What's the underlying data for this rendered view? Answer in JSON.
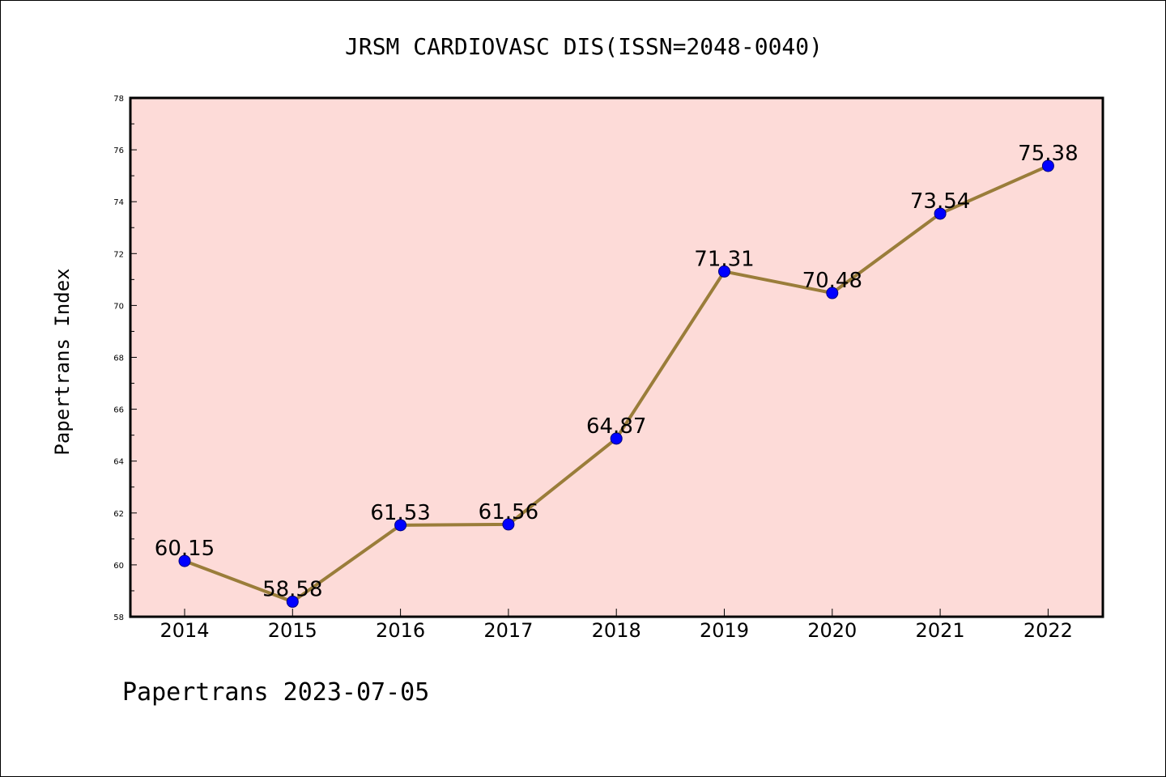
{
  "chart_data": {
    "type": "line",
    "title": "JRSM CARDIOVASC DIS(ISSN=2048-0040)",
    "xlabel": "",
    "ylabel": "Papertrans Index",
    "footer": "Papertrans 2023-07-05",
    "categories": [
      "2014",
      "2015",
      "2016",
      "2017",
      "2018",
      "2019",
      "2020",
      "2021",
      "2022"
    ],
    "series": [
      {
        "values": [
          60.15,
          58.58,
          61.53,
          61.56,
          64.87,
          71.31,
          70.48,
          73.54,
          75.38
        ],
        "labels": [
          "60.15",
          "58.58",
          "61.53",
          "61.56",
          "64.87",
          "71.31",
          "70.48",
          "73.54",
          "75.38"
        ]
      }
    ],
    "ylim": [
      58,
      78
    ],
    "yticks": [
      58,
      60,
      62,
      64,
      66,
      68,
      70,
      72,
      74,
      76,
      78
    ],
    "grid": false,
    "colors": {
      "plot_background": "#fddbd8",
      "line": "#9a7d3a",
      "marker": "#0000ff",
      "marker_edge": "#000080"
    }
  }
}
